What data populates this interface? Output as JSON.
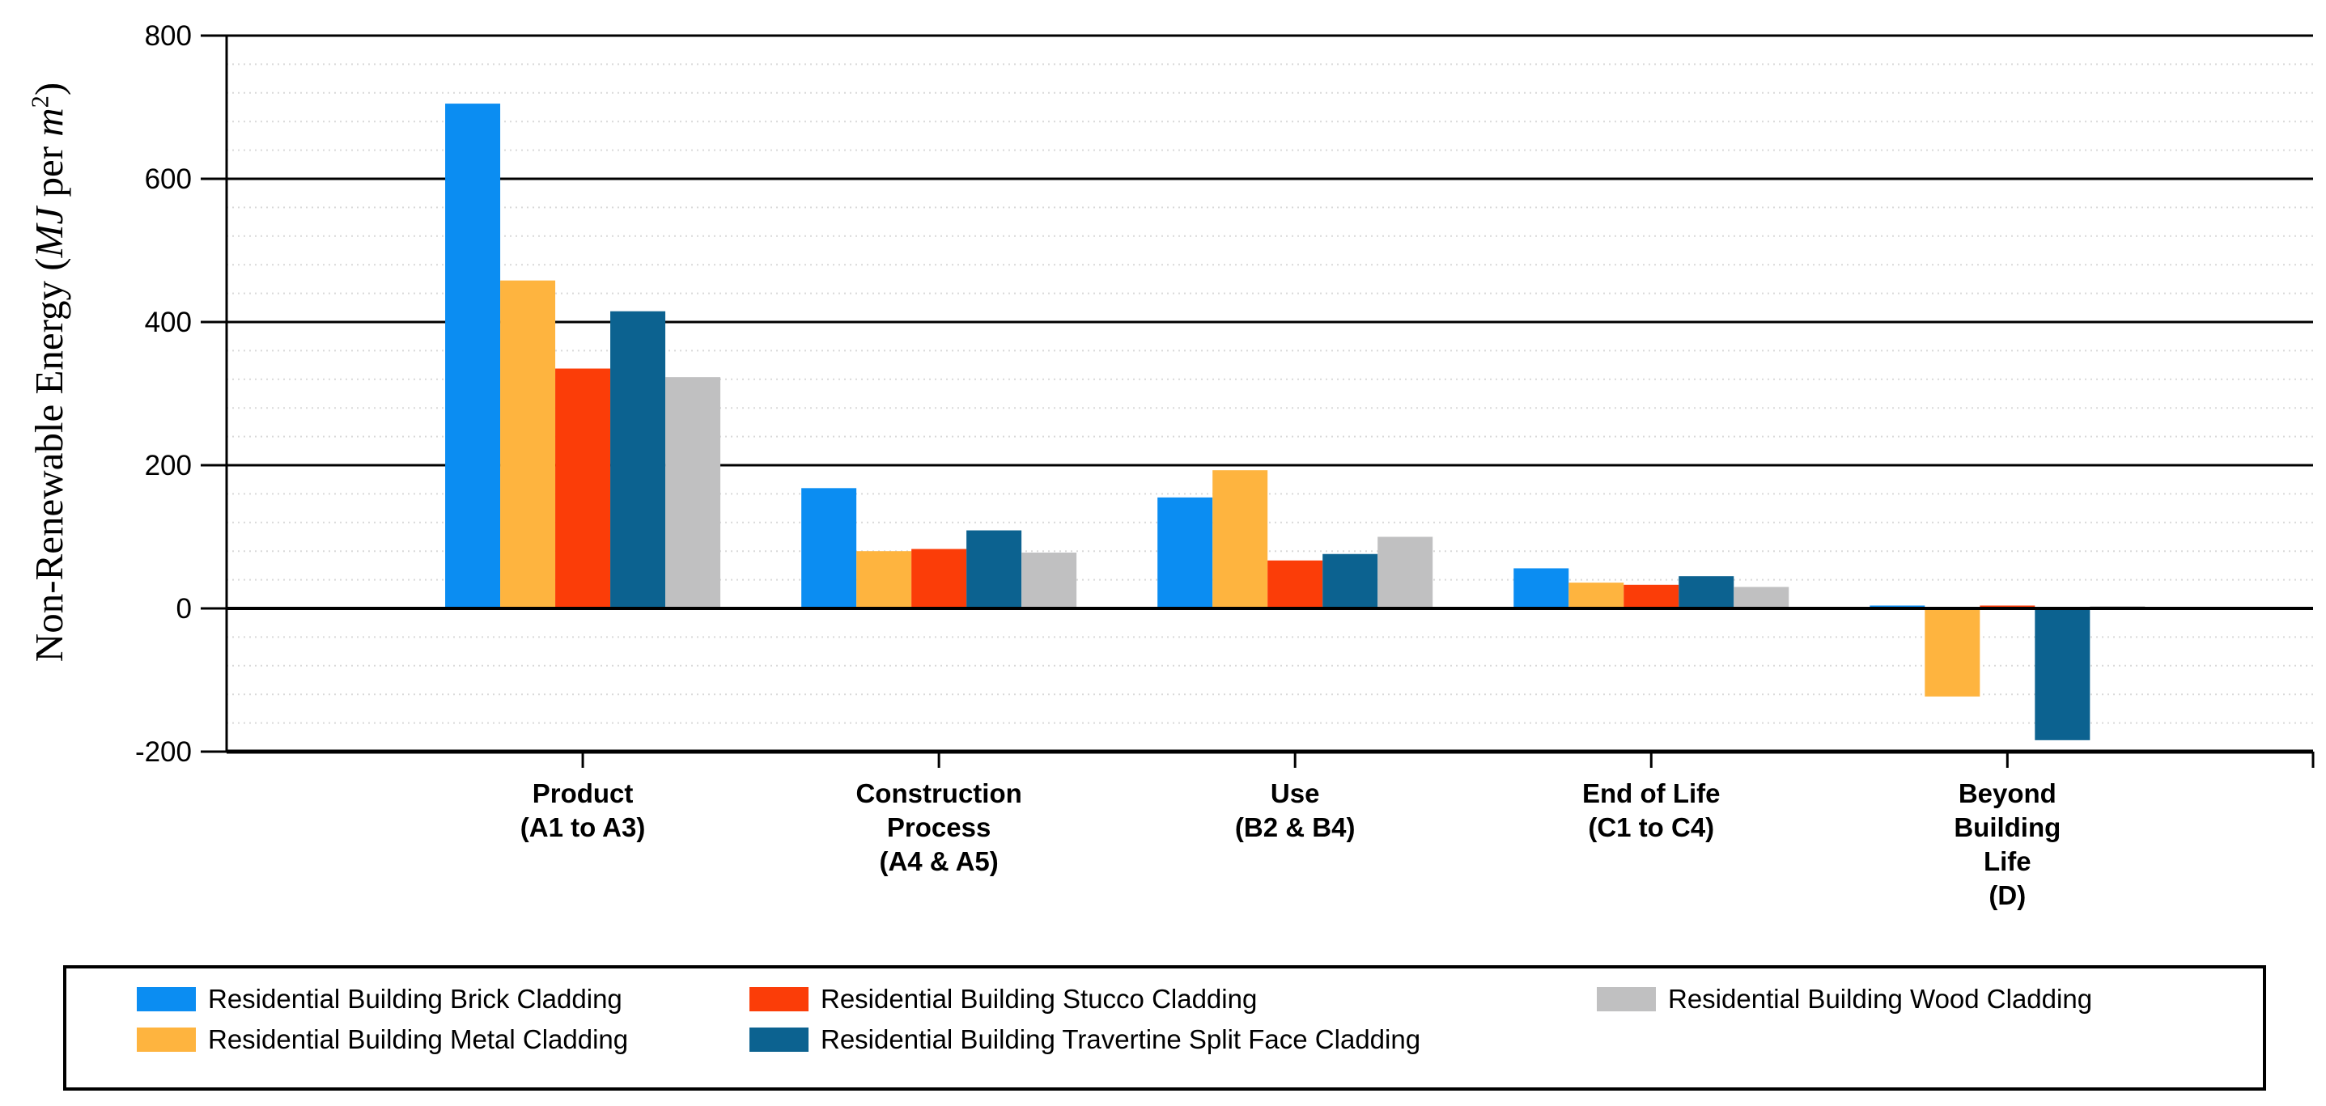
{
  "figure": {
    "background": "#ffffff",
    "ylabel_parts": {
      "prefix": "Non-Renewable Energy (",
      "mj_italic": "MJ",
      "middle": " per ",
      "m_italic": "m",
      "superscript": "2",
      "suffix": ")"
    }
  },
  "chart_data": {
    "type": "bar",
    "title": "",
    "xlabel": "",
    "ylabel": "Non-Renewable Energy (MJ per m2)",
    "ylim": [
      -200,
      800
    ],
    "y_major_step": 200,
    "y_minor_step": 40,
    "grid": "major solid black horizontal lines, minor dotted light-gray horizontal lines",
    "legend_position": "bottom",
    "axis_color": "#000000",
    "minor_grid_color": "#d9d9d9",
    "y_ticks": [
      {
        "value": 800,
        "label": "800"
      },
      {
        "value": 600,
        "label": "600"
      },
      {
        "value": 400,
        "label": "400"
      },
      {
        "value": 200,
        "label": "200"
      },
      {
        "value": 0,
        "label": "0"
      },
      {
        "value": -200,
        "label": "-200"
      }
    ],
    "categories": [
      {
        "lines": [
          "Product",
          "(A1 to A3)"
        ]
      },
      {
        "lines": [
          "Construction",
          "Process",
          "(A4 & A5)"
        ]
      },
      {
        "lines": [
          "Use",
          "(B2 & B4)"
        ]
      },
      {
        "lines": [
          "End of Life",
          "(C1 to C4)"
        ]
      },
      {
        "lines": [
          "Beyond",
          "Building",
          "Life",
          "(D)"
        ]
      }
    ],
    "series": [
      {
        "name": "Residential Building Brick Cladding",
        "color": "#0b8df2",
        "values": [
          705,
          168,
          155,
          56,
          4
        ]
      },
      {
        "name": "Residential Building Metal Cladding",
        "color": "#feb43f",
        "values": [
          458,
          80,
          193,
          36,
          -123
        ]
      },
      {
        "name": "Residential Building Stucco Cladding",
        "color": "#fb3d08",
        "values": [
          335,
          83,
          67,
          33,
          4
        ]
      },
      {
        "name": "Residential Building Travertine Split Face Cladding",
        "color": "#0c6290",
        "values": [
          415,
          109,
          76,
          45,
          -184
        ]
      },
      {
        "name": "Residential Building Wood Cladding",
        "color": "#c0c0c1",
        "values": [
          323,
          78,
          100,
          30,
          3
        ]
      }
    ]
  }
}
